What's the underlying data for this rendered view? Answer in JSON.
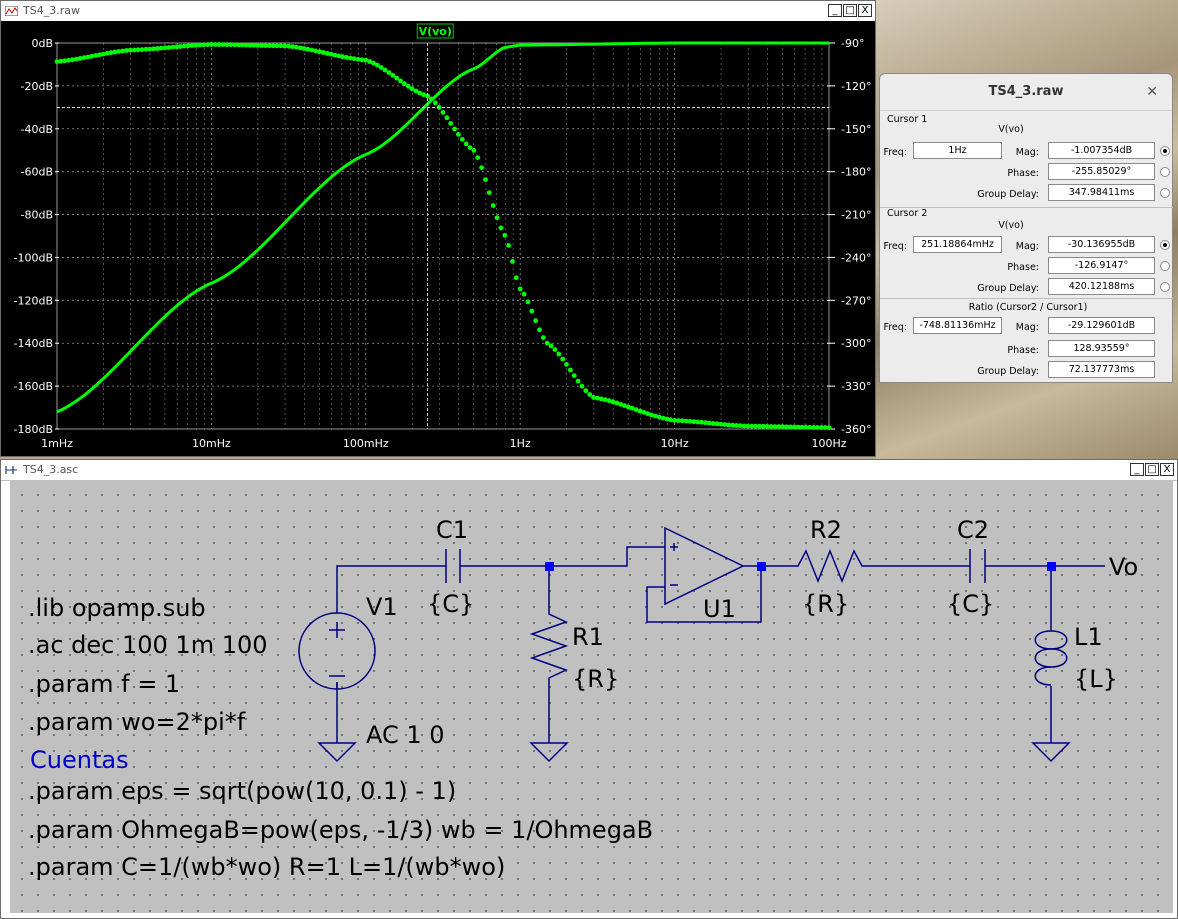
{
  "plot_window": {
    "title": "TS4_3.raw",
    "trace_label": "V(vo)",
    "buttons": [
      "_",
      "□",
      "X"
    ]
  },
  "chart_data": {
    "type": "line",
    "xscale": "log",
    "xlim": [
      0.001,
      100
    ],
    "x_ticks": [
      "1mHz",
      "10mHz",
      "100mHz",
      "1Hz",
      "10Hz",
      "100Hz"
    ],
    "y_left_ticks": [
      "0dB",
      "-20dB",
      "-40dB",
      "-60dB",
      "-80dB",
      "-100dB",
      "-120dB",
      "-140dB",
      "-160dB",
      "-180dB"
    ],
    "y_right_ticks": [
      "-90°",
      "-120°",
      "-150°",
      "-180°",
      "-210°",
      "-240°",
      "-270°",
      "-300°",
      "-330°",
      "-360°"
    ],
    "ylim_left": [
      -180,
      0
    ],
    "ylim_right": [
      -360,
      -90
    ],
    "grid": true,
    "series": [
      {
        "name": "V(vo)",
        "style": "solid",
        "axis": "left",
        "x": [
          0.001,
          0.01,
          0.1,
          0.5,
          0.8,
          1,
          10,
          100
        ],
        "y": [
          -172,
          -112,
          -52,
          -12,
          -2,
          -1,
          0,
          0
        ]
      },
      {
        "name": "V(vo)",
        "style": "dotted",
        "axis": "right",
        "x": [
          0.001,
          0.003,
          0.01,
          0.03,
          0.1,
          0.25,
          0.5,
          0.8,
          1,
          1.5,
          3,
          10,
          30,
          100
        ],
        "y": [
          -103,
          -95,
          -91,
          -92,
          -102,
          -127,
          -165,
          -225,
          -262,
          -300,
          -338,
          -354,
          -358,
          -359
        ]
      }
    ],
    "cursor": {
      "x": 0.2512,
      "y": -30.1
    }
  },
  "cursor_dialog": {
    "title": "TS4_3.raw",
    "close": "✕",
    "cursor1": {
      "title": "Cursor 1",
      "signal": "V(vo)",
      "freq_label": "Freq:",
      "freq": "1Hz",
      "mag_label": "Mag:",
      "mag": "-1.007354dB",
      "phase_label": "Phase:",
      "phase": "-255.85029°",
      "gd_label": "Group Delay:",
      "gd": "347.98411ms"
    },
    "cursor2": {
      "title": "Cursor 2",
      "signal": "V(vo)",
      "freq_label": "Freq:",
      "freq": "251.18864mHz",
      "mag_label": "Mag:",
      "mag": "-30.136955dB",
      "phase_label": "Phase:",
      "phase": "-126.9147°",
      "gd_label": "Group Delay:",
      "gd": "420.12188ms"
    },
    "ratio": {
      "title": "Ratio (Cursor2 / Cursor1)",
      "freq_label": "Freq:",
      "freq": "-748.81136mHz",
      "mag_label": "Mag:",
      "mag": "-29.129601dB",
      "phase_label": "Phase:",
      "phase": "128.93559°",
      "gd_label": "Group Delay:",
      "gd": "72.137773ms"
    }
  },
  "schematic_window": {
    "title": "TS4_3.asc",
    "buttons": [
      "_",
      "□",
      "X"
    ],
    "netlist": [
      ".lib opamp.sub",
      ".ac dec 100 1m 100",
      ".param f = 1",
      ".param wo=2*pi*f"
    ],
    "comment": "Cuentas",
    "params": [
      ".param eps = sqrt(pow(10, 0.1) - 1)",
      ".param OhmegaB=pow(eps, -1/3) wb = 1/OhmegaB",
      ".param C=1/(wb*wo) R=1 L=1/(wb*wo)"
    ],
    "components": {
      "C1": "C1",
      "C1_val": "{C}",
      "V1": "V1",
      "V1_val": "AC 1 0",
      "R1": "R1",
      "R1_val": "{R}",
      "U1": "U1",
      "R2": "R2",
      "R2_val": "{R}",
      "C2": "C2",
      "C2_val": "{C}",
      "L1": "L1",
      "L1_val": "{L}",
      "Vo": "Vo"
    }
  }
}
